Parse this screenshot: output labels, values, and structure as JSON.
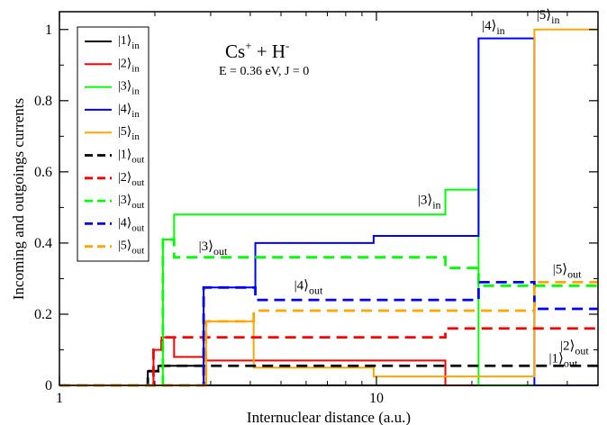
{
  "chart_data": {
    "type": "line",
    "title_main": "Cs",
    "title_sup1": "+",
    "title_mid": " + H",
    "title_sup2": "-",
    "subtitle": "E = 0.36 eV, J = 0",
    "xlabel": "Internuclear distance (a.u.)",
    "ylabel": "Incoming and outgoings currents",
    "x_scale": "log",
    "xlim": [
      1,
      50
    ],
    "ylim": [
      0,
      1.05
    ],
    "x_ticks": [
      {
        "v": 1,
        "label": "1"
      },
      {
        "v": 10,
        "label": "10"
      }
    ],
    "y_ticks": [
      {
        "v": 0,
        "label": "0"
      },
      {
        "v": 0.2,
        "label": "0.2"
      },
      {
        "v": 0.4,
        "label": "0.4"
      },
      {
        "v": 0.6,
        "label": "0.6"
      },
      {
        "v": 0.8,
        "label": "0.8"
      },
      {
        "v": 1,
        "label": "1"
      }
    ],
    "legend_position": "top-left",
    "series": [
      {
        "key": "1in",
        "state": "|1⟩",
        "sub": "in",
        "color": "#000000",
        "dash": false,
        "points": [
          [
            1,
            0
          ],
          [
            1.9,
            0
          ],
          [
            1.9,
            0.04
          ],
          [
            2.05,
            0.04
          ],
          [
            2.05,
            0.055
          ],
          [
            2.9,
            0.055
          ],
          [
            2.9,
            0
          ],
          [
            50,
            0
          ]
        ]
      },
      {
        "key": "2in",
        "state": "|2⟩",
        "sub": "in",
        "color": "#ff0000",
        "dash": false,
        "points": [
          [
            1,
            0
          ],
          [
            1.98,
            0
          ],
          [
            1.98,
            0.1
          ],
          [
            2.1,
            0.1
          ],
          [
            2.1,
            0.135
          ],
          [
            2.3,
            0.135
          ],
          [
            2.3,
            0.08
          ],
          [
            2.88,
            0.08
          ],
          [
            2.88,
            0.07
          ],
          [
            16.5,
            0.07
          ],
          [
            16.5,
            0
          ],
          [
            50,
            0
          ]
        ]
      },
      {
        "key": "3in",
        "state": "|3⟩",
        "sub": "in",
        "color": "#00ff00",
        "dash": false,
        "points": [
          [
            1,
            0
          ],
          [
            2.12,
            0
          ],
          [
            2.12,
            0.41
          ],
          [
            2.3,
            0.41
          ],
          [
            2.3,
            0.48
          ],
          [
            16.5,
            0.48
          ],
          [
            16.5,
            0.55
          ],
          [
            21,
            0.55
          ],
          [
            21,
            0
          ],
          [
            50,
            0
          ]
        ]
      },
      {
        "key": "4in",
        "state": "|4⟩",
        "sub": "in",
        "color": "#0000ff",
        "dash": false,
        "points": [
          [
            1,
            0
          ],
          [
            2.85,
            0
          ],
          [
            2.85,
            0.275
          ],
          [
            4.15,
            0.275
          ],
          [
            4.15,
            0.4
          ],
          [
            9.8,
            0.4
          ],
          [
            9.8,
            0.42
          ],
          [
            21,
            0.42
          ],
          [
            21,
            0.975
          ],
          [
            31.5,
            0.975
          ],
          [
            31.5,
            0
          ],
          [
            50,
            0
          ]
        ]
      },
      {
        "key": "5in",
        "state": "|5⟩",
        "sub": "in",
        "color": "#ffa500",
        "dash": false,
        "points": [
          [
            1,
            0
          ],
          [
            2.9,
            0
          ],
          [
            2.9,
            0.18
          ],
          [
            4.1,
            0.18
          ],
          [
            4.1,
            0.05
          ],
          [
            9.8,
            0.05
          ],
          [
            9.8,
            0.025
          ],
          [
            31.5,
            0.025
          ],
          [
            31.5,
            1.0
          ],
          [
            50,
            1.0
          ]
        ]
      },
      {
        "key": "1out",
        "state": "|1⟩",
        "sub": "out",
        "color": "#000000",
        "dash": true,
        "points": [
          [
            1,
            0
          ],
          [
            1.9,
            0
          ],
          [
            1.9,
            0.04
          ],
          [
            2.05,
            0.04
          ],
          [
            2.05,
            0.055
          ],
          [
            50,
            0.055
          ]
        ]
      },
      {
        "key": "2out",
        "state": "|2⟩",
        "sub": "out",
        "color": "#ff0000",
        "dash": true,
        "points": [
          [
            1,
            0
          ],
          [
            1.98,
            0
          ],
          [
            1.98,
            0.1
          ],
          [
            2.1,
            0.1
          ],
          [
            2.1,
            0.135
          ],
          [
            16.5,
            0.135
          ],
          [
            16.5,
            0.16
          ],
          [
            50,
            0.16
          ]
        ]
      },
      {
        "key": "3out",
        "state": "|3⟩",
        "sub": "out",
        "color": "#00ff00",
        "dash": true,
        "points": [
          [
            1,
            0
          ],
          [
            2.12,
            0
          ],
          [
            2.12,
            0.41
          ],
          [
            2.3,
            0.41
          ],
          [
            2.3,
            0.36
          ],
          [
            16.5,
            0.36
          ],
          [
            16.5,
            0.33
          ],
          [
            21,
            0.33
          ],
          [
            21,
            0.28
          ],
          [
            50,
            0.28
          ]
        ]
      },
      {
        "key": "4out",
        "state": "|4⟩",
        "sub": "out",
        "color": "#0000ff",
        "dash": true,
        "points": [
          [
            1,
            0
          ],
          [
            2.85,
            0
          ],
          [
            2.85,
            0.275
          ],
          [
            4.15,
            0.275
          ],
          [
            4.15,
            0.24
          ],
          [
            21,
            0.24
          ],
          [
            21,
            0.29
          ],
          [
            31.5,
            0.29
          ],
          [
            31.5,
            0.215
          ],
          [
            50,
            0.215
          ]
        ]
      },
      {
        "key": "5out",
        "state": "|5⟩",
        "sub": "out",
        "color": "#ffa500",
        "dash": true,
        "points": [
          [
            1,
            0
          ],
          [
            2.9,
            0
          ],
          [
            2.9,
            0.18
          ],
          [
            4.1,
            0.18
          ],
          [
            4.1,
            0.21
          ],
          [
            31.5,
            0.21
          ],
          [
            31.5,
            0.29
          ],
          [
            50,
            0.29
          ]
        ]
      }
    ],
    "annotations": [
      {
        "state": "|4⟩",
        "sub": "in",
        "x": 21.5,
        "y": 1.0
      },
      {
        "state": "|5⟩",
        "sub": "in",
        "x": 32,
        "y": 1.03
      },
      {
        "state": "|3⟩",
        "sub": "in",
        "x": 13.5,
        "y": 0.51
      },
      {
        "state": "|3⟩",
        "sub": "out",
        "x": 2.75,
        "y": 0.38
      },
      {
        "state": "|4⟩",
        "sub": "out",
        "x": 5.5,
        "y": 0.27
      },
      {
        "state": "|5⟩",
        "sub": "out",
        "x": 36,
        "y": 0.315
      },
      {
        "state": "|2⟩",
        "sub": "out",
        "x": 38,
        "y": 0.1
      },
      {
        "state": "|1⟩",
        "sub": "out",
        "x": 35,
        "y": 0.065
      }
    ]
  }
}
